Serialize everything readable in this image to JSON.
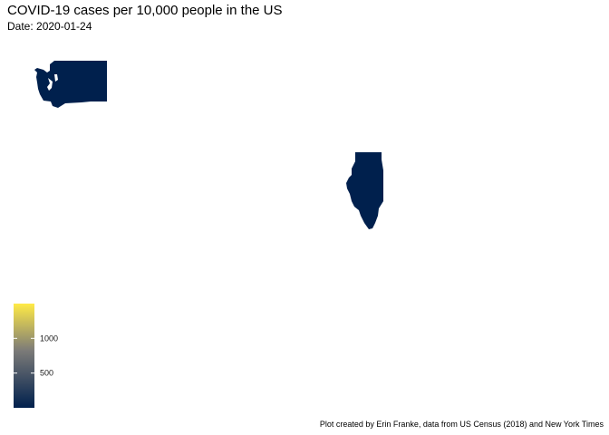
{
  "title": "COVID-19 cases per 10,000 people in the US",
  "subtitle": "Date: 2020-01-24",
  "caption": "Plot created by Erin Franke, data from US Census (2018) and New York Times",
  "colors": {
    "low": "#00204d",
    "mid": "#7c7b78",
    "high": "#ffea46",
    "state_fill": "#00204d"
  },
  "states": [
    {
      "name": "Washington",
      "value_level": "low"
    },
    {
      "name": "Illinois",
      "value_level": "low"
    }
  ],
  "legend": {
    "type": "colorbar",
    "position": "bottom-left",
    "ticks": [
      {
        "value": 500,
        "label": "500"
      },
      {
        "value": 1000,
        "label": "1000"
      }
    ],
    "range": [
      0,
      1500
    ]
  }
}
